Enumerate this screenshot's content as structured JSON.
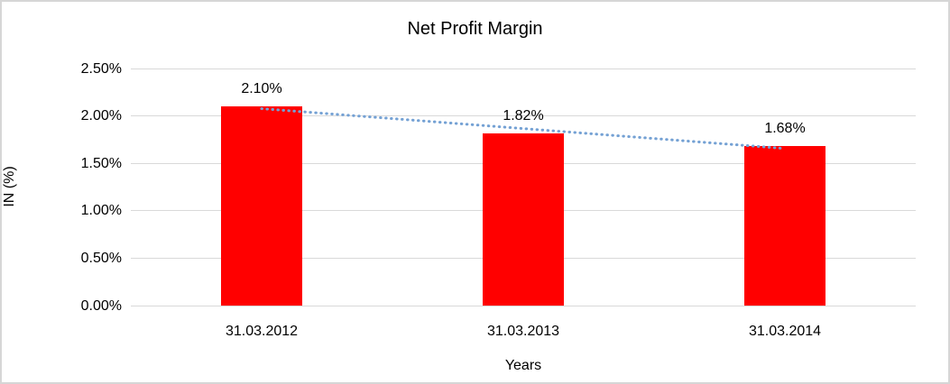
{
  "chart_data": {
    "type": "bar",
    "title": "Net Profit Margin",
    "xlabel": "Years",
    "ylabel": "IN (%)",
    "categories": [
      "31.03.2012",
      "31.03.2013",
      "31.03.2014"
    ],
    "values": [
      2.1,
      1.82,
      1.68
    ],
    "data_labels": [
      "2.10%",
      "1.82%",
      "1.68%"
    ],
    "y_ticks": [
      "0.00%",
      "0.50%",
      "1.00%",
      "1.50%",
      "2.00%",
      "2.50%"
    ],
    "ylim": [
      0,
      2.5
    ],
    "grid": true,
    "legend": "none",
    "colors": {
      "bar": "#FF0000",
      "gridline": "#D9D9D9",
      "trendline": "#74A1D4",
      "text": "#000000",
      "frame_border": "#D6D6D6",
      "background": "#FFFFFF"
    },
    "trendline": {
      "type": "linear",
      "style": "dotted"
    }
  }
}
